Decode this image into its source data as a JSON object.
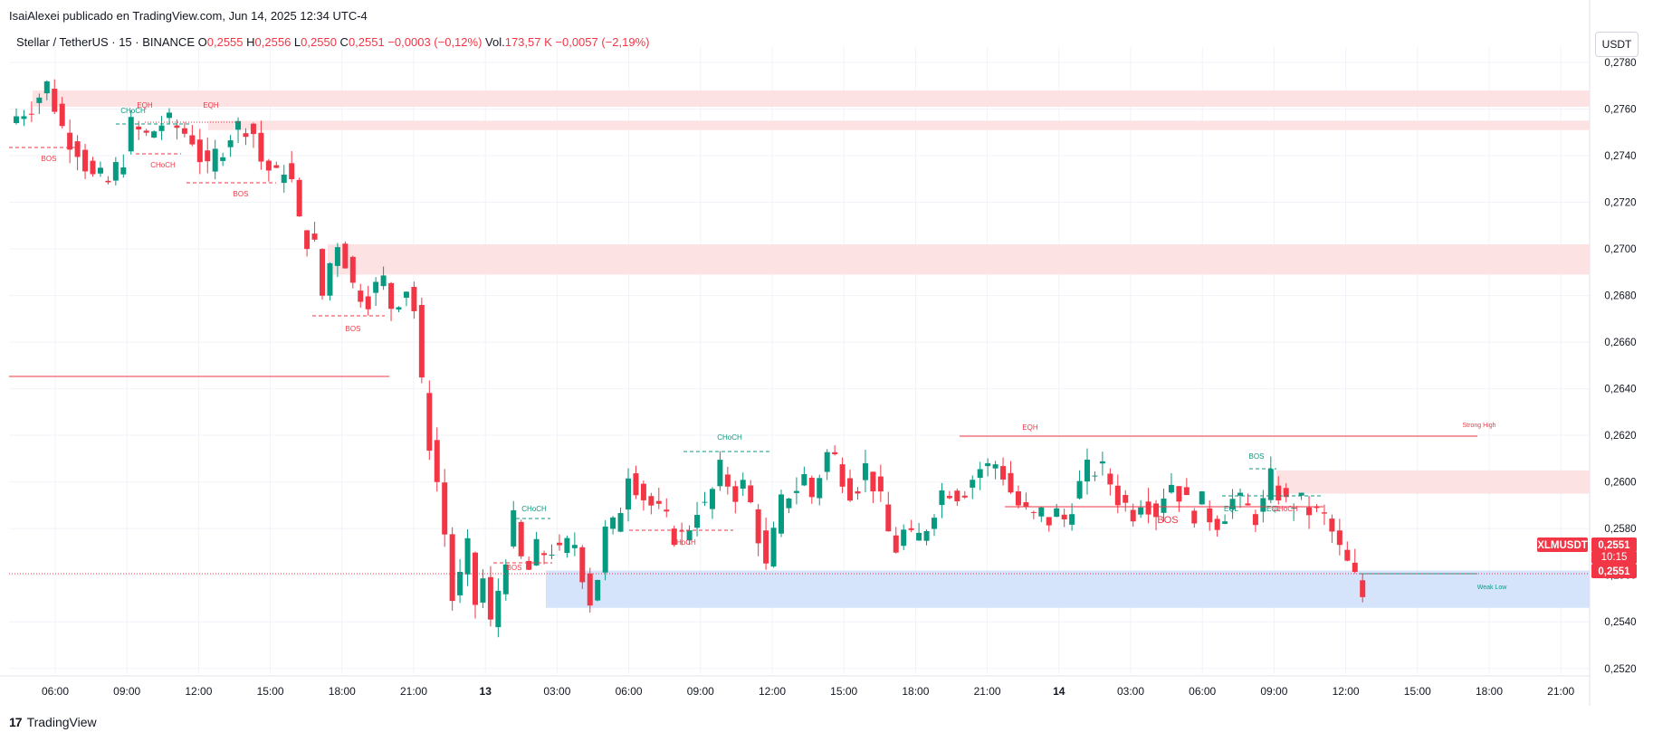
{
  "attribution": "IsaiAlexei publicado en TradingView.com, Jun 14, 2025 12:34 UTC-4",
  "legend": {
    "symbol": "Stellar / TetherUS · 15 · BINANCE",
    "o_label": "O",
    "o_value": "0,2555",
    "h_label": "H",
    "h_value": "0,2556",
    "l_label": "L",
    "l_value": "0,2550",
    "c_label": "C",
    "c_value": "0,2551",
    "change": "−0,0003 (−0,12%)",
    "vol_label": "Vol.",
    "vol_value": "173,57 K",
    "vol_change": "−0,0057 (−2,19%)"
  },
  "unit_button": "USDT",
  "footer": {
    "brand": "TradingView",
    "logo_glyph": "17"
  },
  "colors": {
    "up": "#089981",
    "down": "#f23645",
    "supply_zone": "#fde2e4",
    "demand_zone": "#d6e4fb",
    "grid": "#f0f3fa"
  },
  "chart_data": {
    "type": "candlestick",
    "symbol": "XLMUSDT",
    "timeframe": "15",
    "ylim": [
      0.2504,
      0.2784
    ],
    "yticks": [
      "0,2780",
      "0,2760",
      "0,2740",
      "0,2720",
      "0,2700",
      "0,2680",
      "0,2660",
      "0,2640",
      "0,2620",
      "0,2600",
      "0,2580",
      "0,2560",
      "0,2540",
      "0,2520"
    ],
    "x_ticks": [
      "06:00",
      "09:00",
      "12:00",
      "15:00",
      "18:00",
      "21:00",
      "13",
      "03:00",
      "06:00",
      "09:00",
      "12:00",
      "15:00",
      "18:00",
      "21:00",
      "14",
      "03:00",
      "06:00",
      "09:00",
      "12:00",
      "15:00",
      "18:00",
      "21:00"
    ],
    "x_tick_bold": [
      "13",
      "14"
    ],
    "price_path": [
      [
        0,
        0.2754
      ],
      [
        2,
        0.276
      ],
      [
        4,
        0.2766
      ],
      [
        5,
        0.277
      ],
      [
        6,
        0.2762
      ],
      [
        7,
        0.2752
      ],
      [
        9,
        0.2744
      ],
      [
        11,
        0.273
      ],
      [
        13,
        0.2728
      ],
      [
        15,
        0.274
      ],
      [
        16,
        0.2752
      ],
      [
        18,
        0.2748
      ],
      [
        20,
        0.2754
      ],
      [
        22,
        0.2752
      ],
      [
        24,
        0.2748
      ],
      [
        25,
        0.274
      ],
      [
        26,
        0.2732
      ],
      [
        27,
        0.274
      ],
      [
        29,
        0.275
      ],
      [
        31,
        0.2754
      ],
      [
        32,
        0.275
      ],
      [
        33,
        0.2738
      ],
      [
        35,
        0.273
      ],
      [
        36,
        0.2736
      ],
      [
        37,
        0.2728
      ],
      [
        38,
        0.271
      ],
      [
        40,
        0.27
      ],
      [
        41,
        0.268
      ],
      [
        42,
        0.2694
      ],
      [
        43,
        0.2704
      ],
      [
        44,
        0.2696
      ],
      [
        45,
        0.2684
      ],
      [
        47,
        0.268
      ],
      [
        49,
        0.2686
      ],
      [
        50,
        0.2676
      ],
      [
        51,
        0.268
      ],
      [
        52,
        0.2684
      ],
      [
        53,
        0.2674
      ],
      [
        54,
        0.264
      ],
      [
        55,
        0.2618
      ],
      [
        56,
        0.26
      ],
      [
        57,
        0.2578
      ],
      [
        58,
        0.255
      ],
      [
        59,
        0.2558
      ],
      [
        60,
        0.257
      ],
      [
        61,
        0.2548
      ],
      [
        62,
        0.2558
      ],
      [
        63,
        0.2538
      ],
      [
        64,
        0.2554
      ],
      [
        65,
        0.257
      ],
      [
        66,
        0.2582
      ],
      [
        67,
        0.2566
      ],
      [
        68,
        0.2562
      ],
      [
        69,
        0.257
      ],
      [
        70,
        0.257
      ],
      [
        71,
        0.2572
      ],
      [
        72,
        0.2568
      ],
      [
        73,
        0.2572
      ],
      [
        74,
        0.2574
      ],
      [
        75,
        0.2562
      ],
      [
        76,
        0.255
      ],
      [
        77,
        0.256
      ],
      [
        78,
        0.2578
      ],
      [
        79,
        0.258
      ],
      [
        80,
        0.259
      ],
      [
        81,
        0.2606
      ],
      [
        82,
        0.26
      ],
      [
        83,
        0.2594
      ],
      [
        84,
        0.259
      ],
      [
        85,
        0.2586
      ],
      [
        86,
        0.2582
      ],
      [
        87,
        0.2578
      ],
      [
        88,
        0.2576
      ],
      [
        89,
        0.2582
      ],
      [
        90,
        0.259
      ],
      [
        91,
        0.2588
      ],
      [
        92,
        0.2596
      ],
      [
        93,
        0.2604
      ],
      [
        94,
        0.26
      ],
      [
        95,
        0.2596
      ],
      [
        96,
        0.2598
      ],
      [
        97,
        0.259
      ],
      [
        98,
        0.2578
      ],
      [
        99,
        0.2562
      ],
      [
        100,
        0.2576
      ],
      [
        101,
        0.259
      ],
      [
        102,
        0.2596
      ],
      [
        103,
        0.2598
      ],
      [
        104,
        0.2602
      ],
      [
        105,
        0.2594
      ],
      [
        106,
        0.2604
      ],
      [
        107,
        0.2612
      ],
      [
        108,
        0.261
      ],
      [
        109,
        0.2604
      ],
      [
        110,
        0.2598
      ],
      [
        111,
        0.26
      ],
      [
        112,
        0.2606
      ],
      [
        113,
        0.26
      ],
      [
        114,
        0.259
      ],
      [
        115,
        0.2578
      ],
      [
        116,
        0.2572
      ],
      [
        117,
        0.2578
      ],
      [
        118,
        0.2574
      ],
      [
        119,
        0.2576
      ],
      [
        120,
        0.2582
      ],
      [
        121,
        0.259
      ],
      [
        122,
        0.2596
      ],
      [
        123,
        0.2598
      ],
      [
        124,
        0.2596
      ],
      [
        125,
        0.2598
      ],
      [
        126,
        0.2602
      ],
      [
        127,
        0.2606
      ],
      [
        128,
        0.2606
      ],
      [
        129,
        0.2608
      ],
      [
        130,
        0.2604
      ],
      [
        131,
        0.2596
      ],
      [
        132,
        0.259
      ],
      [
        133,
        0.2586
      ],
      [
        134,
        0.2584
      ],
      [
        135,
        0.2586
      ],
      [
        136,
        0.2584
      ],
      [
        137,
        0.2586
      ],
      [
        138,
        0.2584
      ],
      [
        139,
        0.2592
      ],
      [
        140,
        0.2598
      ],
      [
        141,
        0.2604
      ],
      [
        142,
        0.2606
      ],
      [
        143,
        0.2604
      ],
      [
        144,
        0.26
      ],
      [
        145,
        0.2594
      ],
      [
        146,
        0.259
      ],
      [
        147,
        0.2588
      ],
      [
        148,
        0.2594
      ],
      [
        149,
        0.2592
      ],
      [
        150,
        0.2588
      ],
      [
        151,
        0.2596
      ],
      [
        152,
        0.26
      ],
      [
        153,
        0.2596
      ],
      [
        154,
        0.259
      ],
      [
        155,
        0.2588
      ],
      [
        156,
        0.259
      ],
      [
        157,
        0.2586
      ],
      [
        158,
        0.2584
      ],
      [
        159,
        0.2588
      ],
      [
        160,
        0.2592
      ],
      [
        161,
        0.259
      ],
      [
        162,
        0.2588
      ],
      [
        163,
        0.2586
      ],
      [
        164,
        0.259
      ],
      [
        165,
        0.26
      ],
      [
        166,
        0.2596
      ],
      [
        167,
        0.259
      ],
      [
        168,
        0.2592
      ],
      [
        169,
        0.259
      ],
      [
        170,
        0.2588
      ],
      [
        171,
        0.2586
      ],
      [
        172,
        0.2584
      ],
      [
        173,
        0.2578
      ],
      [
        174,
        0.257
      ],
      [
        175,
        0.2564
      ],
      [
        176,
        0.2558
      ],
      [
        177,
        0.2551
      ]
    ],
    "current_price": {
      "symbol_label": "XLMUSDT",
      "price": "0,2551",
      "countdown": "10:15",
      "last": "0,2551"
    },
    "zones": [
      {
        "kind": "supply",
        "from": [
          0.2761,
          0.2768
        ]
      },
      {
        "kind": "supply",
        "from": [
          0.2751,
          0.2755
        ]
      },
      {
        "kind": "supply",
        "from": [
          0.2689,
          0.2702
        ]
      },
      {
        "kind": "supply",
        "from": [
          0.2595,
          0.2605
        ]
      },
      {
        "kind": "demand",
        "from": [
          0.2546,
          0.2562
        ]
      }
    ],
    "structure_labels": [
      {
        "text": "BOS",
        "color": "red"
      },
      {
        "text": "CHoCH",
        "color": "green"
      },
      {
        "text": "EQH",
        "color": "red"
      },
      {
        "text": "CHoCH",
        "color": "red"
      },
      {
        "text": "EQH",
        "color": "red"
      },
      {
        "text": "BOS",
        "color": "red"
      },
      {
        "text": "BOS",
        "color": "red"
      },
      {
        "text": "CHoCH",
        "color": "green"
      },
      {
        "text": "BOS",
        "color": "red"
      },
      {
        "text": "CHoCH",
        "color": "green"
      },
      {
        "text": "CHoCH",
        "color": "red"
      },
      {
        "text": "EQH",
        "color": "red"
      },
      {
        "text": "BOS",
        "color": "red"
      },
      {
        "text": "BOS",
        "color": "green"
      },
      {
        "text": "EQL",
        "color": "green"
      },
      {
        "text": "EQL",
        "color": "green"
      },
      {
        "text": "CHoCH",
        "color": "red"
      },
      {
        "text": "Strong High",
        "color": "red"
      },
      {
        "text": "Weak Low",
        "color": "green"
      }
    ]
  }
}
